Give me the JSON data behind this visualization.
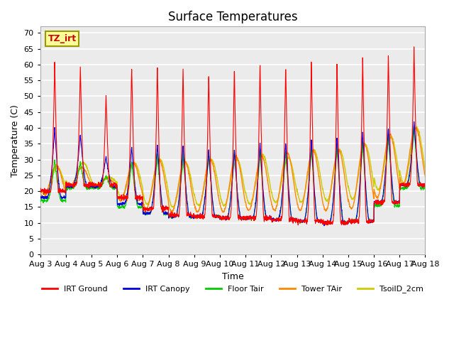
{
  "title": "Surface Temperatures",
  "xlabel": "Time",
  "ylabel": "Temperature (C)",
  "ylim": [
    0,
    72
  ],
  "yticks": [
    0,
    5,
    10,
    15,
    20,
    25,
    30,
    35,
    40,
    45,
    50,
    55,
    60,
    65,
    70
  ],
  "plot_bg_color": "#ebebeb",
  "grid_color": "#ffffff",
  "annotation_text": "TZ_irt",
  "annotation_bg": "#ffff99",
  "annotation_border": "#999900",
  "legend_entries": [
    "IRT Ground",
    "IRT Canopy",
    "Floor Tair",
    "Tower TAir",
    "TsoilD_2cm"
  ],
  "line_colors": [
    "#ff0000",
    "#0000dd",
    "#00cc00",
    "#ff8800",
    "#cccc00"
  ],
  "x_labels": [
    "Aug 3",
    "Aug 4",
    "Aug 5",
    "Aug 6",
    "Aug 7",
    "Aug 8",
    "Aug 9",
    "Aug 10",
    "Aug 11",
    "Aug 12",
    "Aug 13",
    "Aug 14",
    "Aug 15",
    "Aug 16",
    "Aug 17",
    "Aug 18"
  ],
  "irt_ground_peaks": [
    60.5,
    59.5,
    51.0,
    60.0,
    60.5,
    59.5,
    57.5,
    59.5,
    61.0,
    60.5,
    61.5,
    61.0,
    63.0,
    64.0,
    65.5
  ],
  "irt_ground_mins": [
    20.0,
    22.0,
    22.0,
    18.0,
    14.5,
    12.5,
    12.0,
    11.5,
    11.5,
    11.0,
    10.5,
    10.0,
    10.5,
    16.5,
    22.0
  ],
  "irt_canopy_peaks": [
    40.0,
    38.0,
    31.0,
    34.0,
    35.0,
    34.5,
    33.0,
    33.0,
    35.5,
    35.5,
    36.5,
    37.0,
    39.0,
    40.0,
    42.0
  ],
  "irt_canopy_mins": [
    18.0,
    21.5,
    21.5,
    16.0,
    13.0,
    12.0,
    12.0,
    11.5,
    11.5,
    11.0,
    10.5,
    10.0,
    10.5,
    16.5,
    22.0
  ],
  "floor_tair_peaks": [
    30.0,
    29.0,
    25.0,
    29.5,
    32.0,
    32.0,
    32.5,
    33.0,
    33.0,
    33.0,
    34.0,
    35.0,
    36.0,
    38.0,
    40.0
  ],
  "floor_tair_mins": [
    17.0,
    21.0,
    21.0,
    15.0,
    13.0,
    12.0,
    12.0,
    11.5,
    11.5,
    11.0,
    10.5,
    10.0,
    10.5,
    15.5,
    21.0
  ],
  "tower_tair_peaks": [
    28.0,
    27.5,
    24.0,
    29.0,
    30.0,
    29.5,
    30.0,
    31.0,
    31.0,
    32.0,
    33.0,
    33.0,
    35.0,
    38.0,
    40.0
  ],
  "tower_tair_mins": [
    18.0,
    21.0,
    21.0,
    17.0,
    14.5,
    13.5,
    13.5,
    13.5,
    14.0,
    14.0,
    14.0,
    14.0,
    14.5,
    18.0,
    22.0
  ],
  "tsoil_peaks": [
    27.5,
    29.0,
    24.5,
    29.0,
    30.0,
    29.0,
    30.0,
    30.0,
    31.5,
    30.5,
    33.0,
    33.0,
    34.5,
    37.0,
    40.0
  ],
  "tsoil_mins": [
    19.0,
    21.5,
    22.0,
    18.0,
    16.0,
    15.0,
    15.5,
    15.5,
    16.0,
    16.5,
    16.5,
    17.0,
    17.5,
    20.5,
    22.5
  ]
}
